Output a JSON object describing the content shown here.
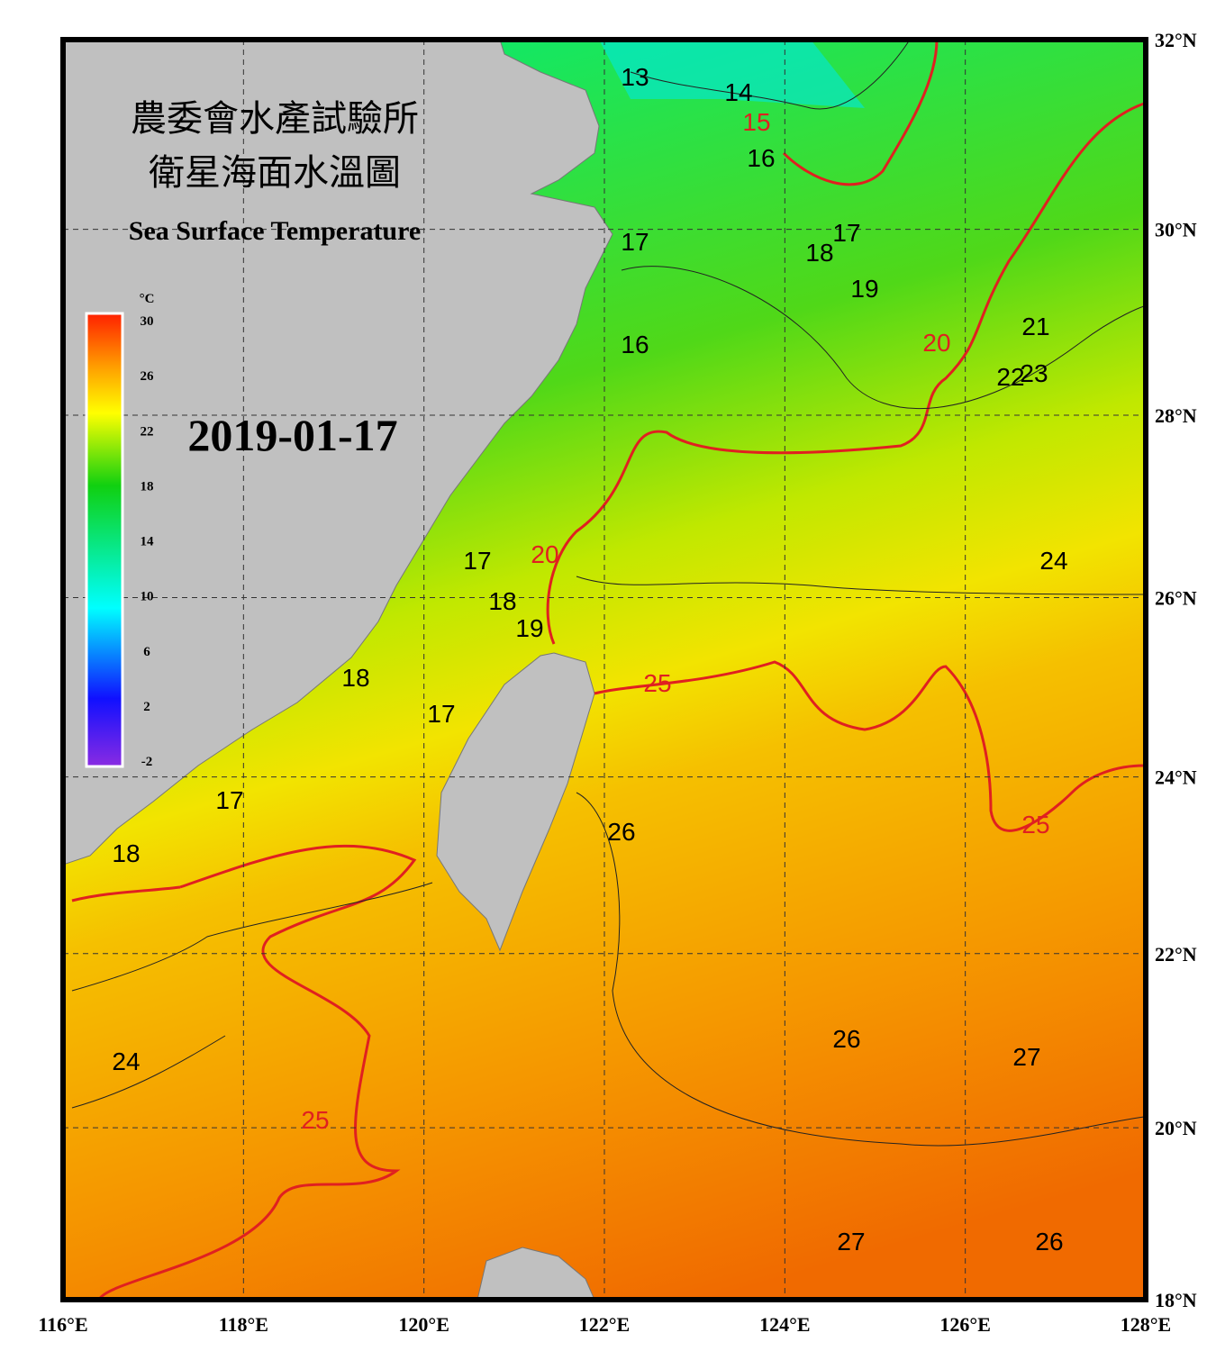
{
  "header": {
    "title_line1": "農委會水產試驗所",
    "title_line2": "衛星海面水溫圖",
    "subtitle": "Sea Surface Temperature",
    "date": "2019-01-17"
  },
  "map": {
    "lon_range": [
      116,
      128
    ],
    "lat_range": [
      18,
      32
    ],
    "lon_ticks": [
      {
        "value": 116,
        "label": "116°E"
      },
      {
        "value": 118,
        "label": "118°E"
      },
      {
        "value": 120,
        "label": "120°E"
      },
      {
        "value": 122,
        "label": "122°E"
      },
      {
        "value": 124,
        "label": "124°E"
      },
      {
        "value": 126,
        "label": "126°E"
      },
      {
        "value": 128,
        "label": "128°E"
      }
    ],
    "lat_ticks": [
      {
        "value": 18,
        "label": "18°N"
      },
      {
        "value": 20,
        "label": "20°N"
      },
      {
        "value": 22,
        "label": "22°N"
      },
      {
        "value": 24,
        "label": "24°N"
      },
      {
        "value": 26,
        "label": "26°N"
      },
      {
        "value": 28,
        "label": "28°N"
      },
      {
        "value": 30,
        "label": "30°N"
      },
      {
        "value": 32,
        "label": "32°N"
      }
    ],
    "colorbar": {
      "unit": "°C",
      "range": [
        -2,
        30
      ],
      "ticks": [
        30,
        26,
        22,
        18,
        14,
        10,
        6,
        2,
        -2
      ]
    },
    "contour_labels": [
      13,
      14,
      15,
      16,
      17,
      18,
      19,
      20,
      21,
      22,
      23,
      24,
      16,
      17,
      17,
      18,
      19,
      20,
      18,
      17,
      17,
      18,
      25,
      25,
      26,
      26,
      27,
      24,
      25,
      27,
      26
    ]
  }
}
